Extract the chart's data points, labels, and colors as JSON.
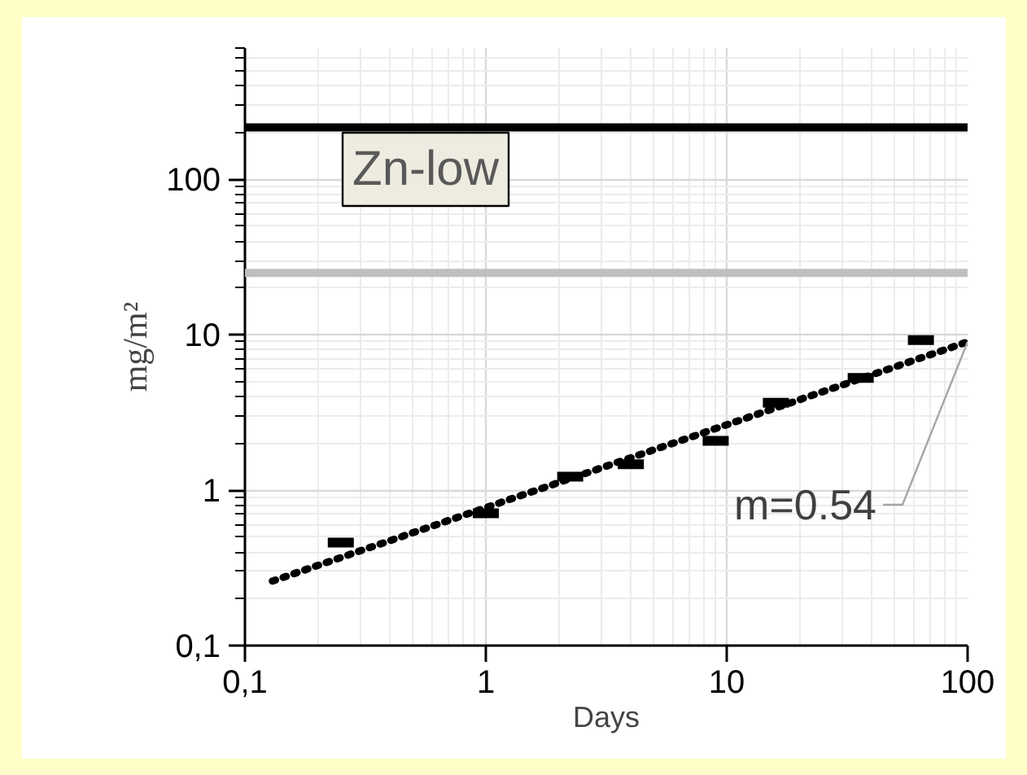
{
  "chart_data": {
    "type": "scatter",
    "xlabel": "Days",
    "ylabel": "mg/m²",
    "log": "xy",
    "grid": true,
    "xlim": [
      0.1,
      100
    ],
    "ylim": [
      0.1,
      700
    ],
    "xticks": [
      {
        "value": 0.1,
        "label": "0,1"
      },
      1,
      10,
      100
    ],
    "yticks": [
      {
        "value": 0.1,
        "label": "0,1"
      },
      1,
      10,
      100
    ],
    "series": [
      {
        "color": "#000000",
        "x": [
          0.25,
          1.0,
          2.24,
          4,
          9,
          16,
          36,
          64
        ],
        "values": [
          0.46,
          0.71,
          1.22,
          1.47,
          2.08,
          3.65,
          5.27,
          9.25
        ]
      },
      {
        "type": "line",
        "line_style": "dotted",
        "color": "#000000",
        "x": [
          0.13,
          100
        ],
        "values": [
          0.26,
          9
        ]
      }
    ],
    "ref_lines": [
      {
        "axis": "y",
        "value": 216,
        "color": "#000000"
      },
      {
        "axis": "y",
        "value": 25,
        "color": "#bfbfbf"
      }
    ],
    "annotations": [
      "Zn-low",
      {
        "text": "m=0.54",
        "x": 100,
        "y": 9
      }
    ]
  }
}
